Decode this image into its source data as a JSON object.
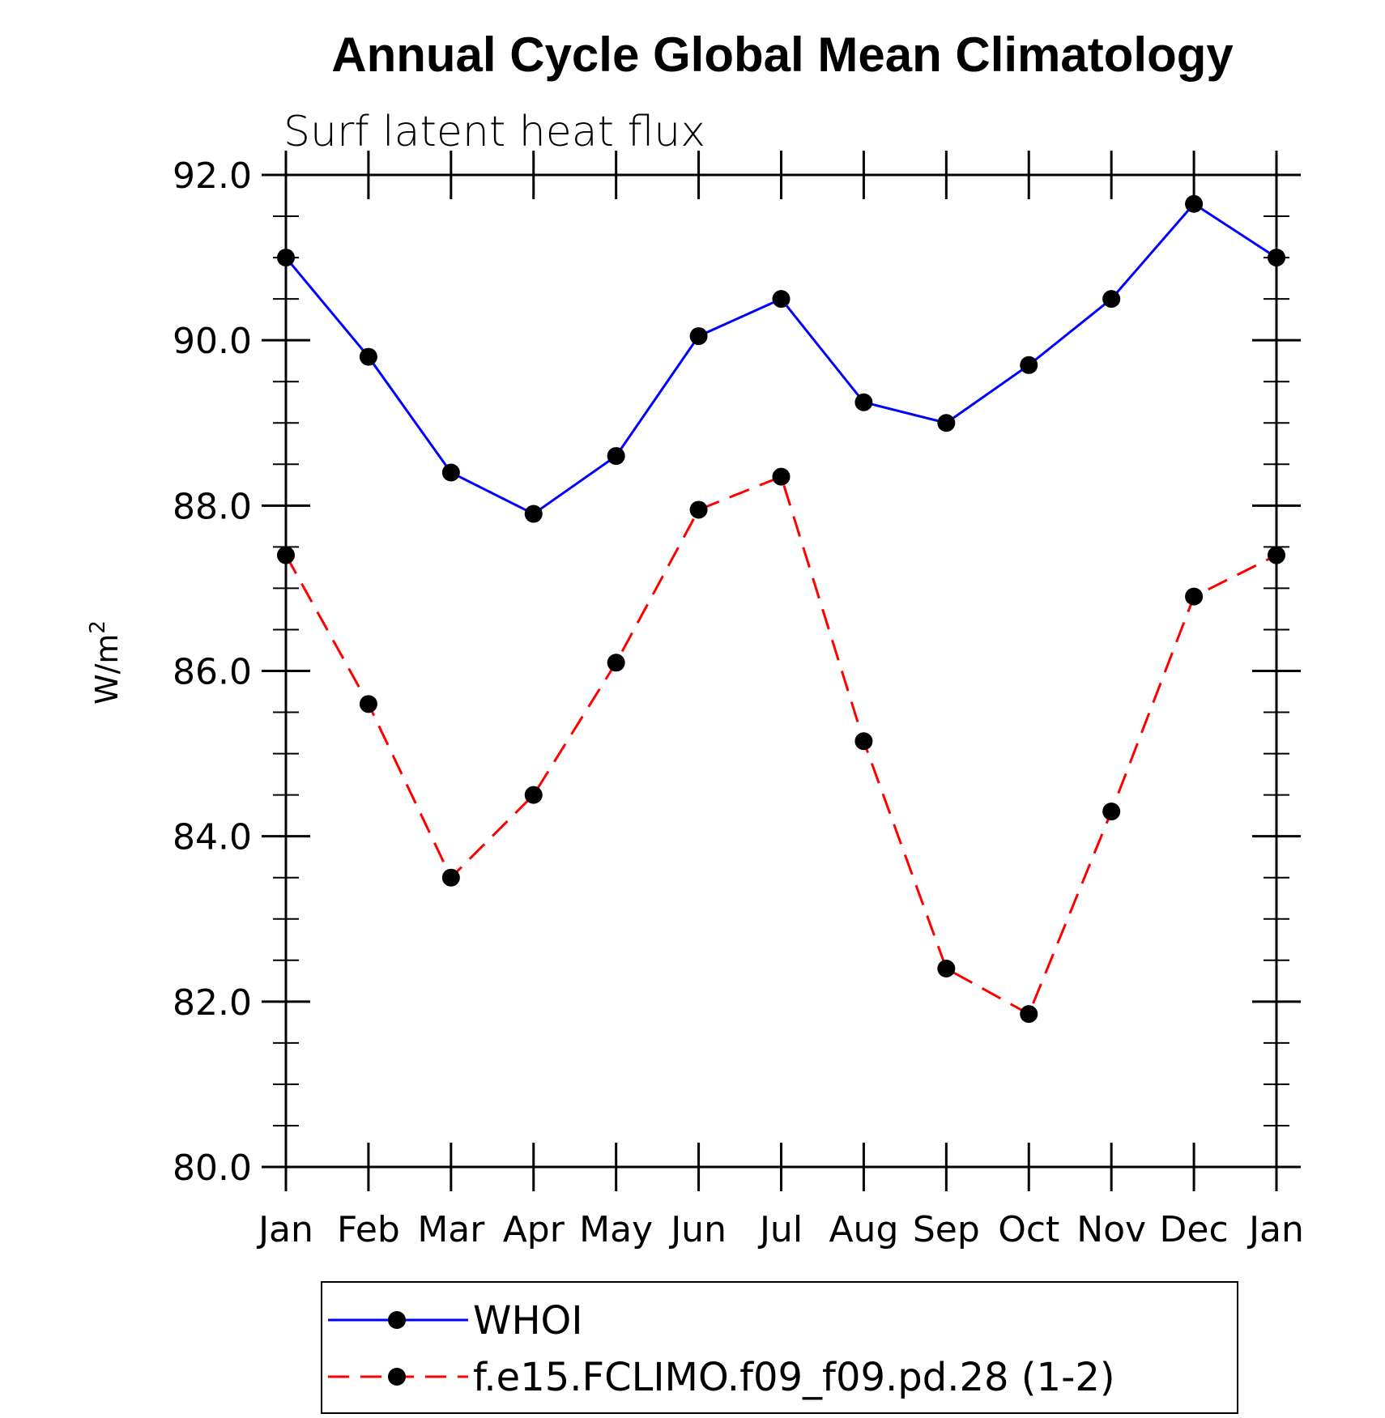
{
  "chart_data": {
    "type": "line",
    "title": "Annual Cycle Global Mean Climatology",
    "subtitle": "Surf latent heat flux",
    "ylabel": "W/m",
    "ylabel_sup": "2",
    "xlabel": "",
    "categories": [
      "Jan",
      "Feb",
      "Mar",
      "Apr",
      "May",
      "Jun",
      "Jul",
      "Aug",
      "Sep",
      "Oct",
      "Nov",
      "Dec",
      "Jan"
    ],
    "ylim": [
      80.0,
      92.0
    ],
    "yticks": [
      "80.0",
      "82.0",
      "84.0",
      "86.0",
      "88.0",
      "90.0",
      "92.0"
    ],
    "grid": false,
    "legend_position": "bottom",
    "series": [
      {
        "name": "WHOI",
        "color": "#0000ff",
        "style": "solid",
        "marker": "circle",
        "values": [
          91.0,
          89.8,
          88.4,
          87.9,
          88.6,
          90.05,
          90.5,
          89.25,
          89.0,
          89.7,
          90.5,
          91.65,
          91.0
        ]
      },
      {
        "name": "f.e15.FCLIMO.f09_f09.pd.28 (1-2)",
        "color": "#ff0000",
        "style": "dashed",
        "marker": "circle",
        "values": [
          87.4,
          85.6,
          83.5,
          84.5,
          86.1,
          87.95,
          88.35,
          85.15,
          82.4,
          81.85,
          84.3,
          86.9,
          87.4
        ]
      }
    ]
  }
}
